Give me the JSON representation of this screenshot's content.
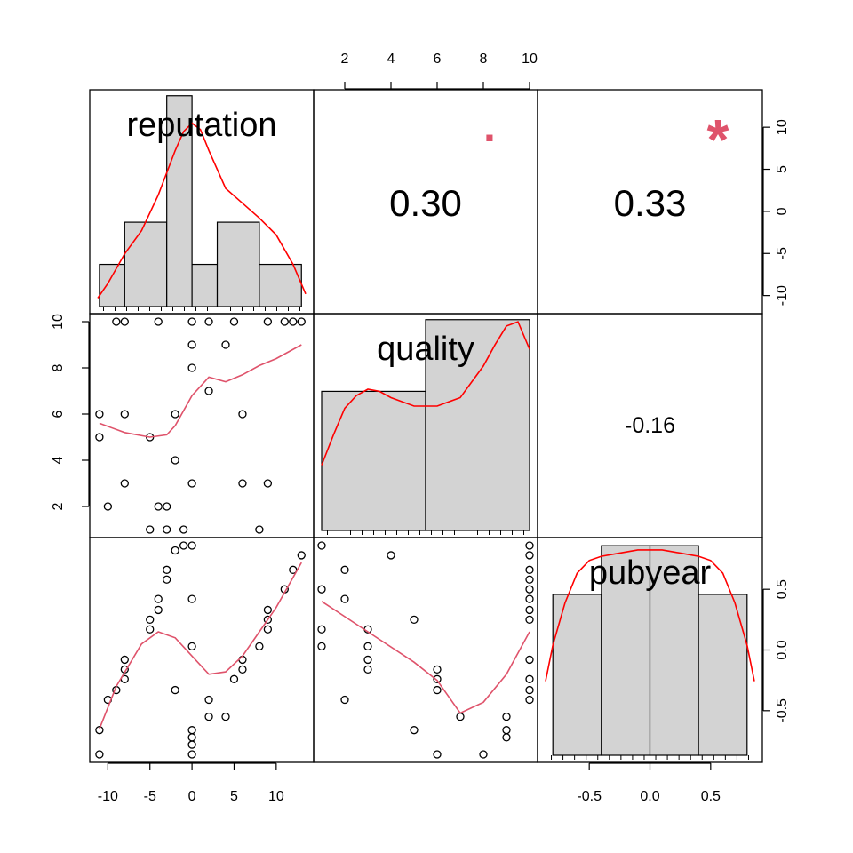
{
  "chart_data": {
    "type": "scatter",
    "variables": [
      "reputation",
      "quality",
      "pubyear"
    ],
    "ranges": {
      "reputation": [
        -11.2,
        13.5
      ],
      "quality": [
        1.0,
        10.0
      ],
      "pubyear": [
        -0.86,
        0.86
      ]
    },
    "axes": {
      "top": {
        "variable": "quality",
        "ticks": [
          2,
          4,
          6,
          8,
          10
        ],
        "labels": [
          "2",
          "4",
          "6",
          "8",
          "10"
        ]
      },
      "bottom_reputation": {
        "variable": "reputation",
        "ticks": [
          -10,
          -5,
          0,
          5,
          10
        ],
        "labels": [
          "-10",
          "-5",
          "0",
          "5",
          "10"
        ]
      },
      "bottom_pubyear": {
        "variable": "pubyear",
        "ticks": [
          -0.5,
          0,
          0.5
        ],
        "labels": [
          "-0.5",
          "0.0",
          "0.5"
        ]
      },
      "left_quality": {
        "variable": "quality",
        "ticks": [
          2,
          4,
          6,
          8,
          10
        ],
        "labels": [
          "2",
          "4",
          "6",
          "8",
          "10"
        ]
      },
      "right_reputation": {
        "variable": "reputation",
        "ticks": [
          -10,
          -5,
          0,
          5,
          10
        ],
        "labels": [
          "-10",
          "-5",
          "0",
          "5",
          "10"
        ]
      },
      "right_pubyear": {
        "variable": "pubyear",
        "ticks": [
          -0.5,
          0,
          0.5
        ],
        "labels": [
          "-0.5",
          "0.0",
          "0.5"
        ]
      }
    },
    "correlations": [
      {
        "row": "reputation",
        "col": "quality",
        "label": "0.30",
        "stars": ".",
        "size": "large"
      },
      {
        "row": "reputation",
        "col": "pubyear",
        "label": "0.33",
        "stars": "*",
        "size": "large"
      },
      {
        "row": "quality",
        "col": "pubyear",
        "label": "-0.16",
        "stars": "",
        "size": "small"
      }
    ],
    "histograms": {
      "reputation": {
        "breaks": [
          -11,
          -8,
          -3,
          0,
          3,
          8,
          13
        ],
        "heights": [
          2,
          4,
          10,
          2,
          4,
          2
        ],
        "ymax": 10.2,
        "density_x": [
          -11.2,
          -10,
          -8,
          -6,
          -4,
          -2,
          -1,
          0,
          1,
          2,
          4,
          6,
          8,
          10,
          12,
          13.5
        ],
        "density_y": [
          0.4,
          1.1,
          2.5,
          3.6,
          5.3,
          7.4,
          8.3,
          8.7,
          8.4,
          7.4,
          5.6,
          4.9,
          4.2,
          3.4,
          2.0,
          0.6
        ]
      },
      "quality": {
        "breaks": [
          1.0,
          5.5,
          10.0
        ],
        "heights": [
          6.6,
          10.0
        ],
        "ymax": 10.2,
        "density_x": [
          1.0,
          1.5,
          2.0,
          2.5,
          3.0,
          3.5,
          4.0,
          5.0,
          6.0,
          7.0,
          8.0,
          8.5,
          9.0,
          9.5,
          10.0
        ],
        "density_y": [
          3.1,
          4.5,
          5.8,
          6.4,
          6.7,
          6.6,
          6.3,
          5.9,
          5.9,
          6.3,
          7.8,
          8.8,
          9.7,
          9.9,
          8.6
        ]
      },
      "pubyear": {
        "breaks": [
          -0.8,
          -0.4,
          0.0,
          0.4,
          0.8
        ],
        "heights": [
          7.6,
          9.9,
          9.9,
          7.6
        ],
        "ymax": 10.2,
        "density_x": [
          -0.86,
          -0.8,
          -0.7,
          -0.6,
          -0.5,
          -0.4,
          -0.3,
          -0.2,
          -0.1,
          0.0,
          0.1,
          0.2,
          0.3,
          0.4,
          0.5,
          0.6,
          0.7,
          0.8,
          0.86
        ],
        "density_y": [
          3.5,
          5.2,
          7.2,
          8.6,
          9.2,
          9.4,
          9.5,
          9.6,
          9.7,
          9.7,
          9.7,
          9.6,
          9.5,
          9.4,
          9.2,
          8.6,
          7.2,
          5.2,
          3.5
        ]
      }
    },
    "scatter": {
      "quality_vs_reputation": {
        "points": [
          [
            -11,
            6
          ],
          [
            -11,
            5
          ],
          [
            -10,
            2
          ],
          [
            -9,
            10
          ],
          [
            -8,
            10
          ],
          [
            -8,
            6
          ],
          [
            -8,
            3
          ],
          [
            -5,
            5
          ],
          [
            -5,
            1
          ],
          [
            -4,
            10
          ],
          [
            -4,
            2
          ],
          [
            -3,
            2
          ],
          [
            -3,
            1
          ],
          [
            -2,
            6
          ],
          [
            -2,
            4
          ],
          [
            -1,
            1
          ],
          [
            0,
            10
          ],
          [
            0,
            9
          ],
          [
            0,
            8
          ],
          [
            0,
            3
          ],
          [
            2,
            10
          ],
          [
            2,
            7
          ],
          [
            4,
            9
          ],
          [
            5,
            10
          ],
          [
            6,
            6
          ],
          [
            6,
            3
          ],
          [
            8,
            1
          ],
          [
            9,
            10
          ],
          [
            9,
            3
          ],
          [
            11,
            10
          ],
          [
            12,
            10
          ],
          [
            13,
            10
          ]
        ],
        "smooth": [
          [
            -11,
            5.6
          ],
          [
            -8,
            5.2
          ],
          [
            -5,
            5.0
          ],
          [
            -3,
            5.1
          ],
          [
            -2,
            5.5
          ],
          [
            0,
            6.8
          ],
          [
            2,
            7.6
          ],
          [
            4,
            7.4
          ],
          [
            6,
            7.7
          ],
          [
            8,
            8.1
          ],
          [
            10,
            8.4
          ],
          [
            13,
            9.0
          ]
        ]
      },
      "pubyear_vs_reputation": {
        "points": [
          [
            -11,
            -0.66
          ],
          [
            -11,
            -0.86
          ],
          [
            -10,
            -0.41
          ],
          [
            -9,
            -0.33
          ],
          [
            -8,
            -0.08
          ],
          [
            -8,
            -0.16
          ],
          [
            -8,
            -0.24
          ],
          [
            -5,
            0.17
          ],
          [
            -5,
            0.25
          ],
          [
            -4,
            0.33
          ],
          [
            -4,
            0.42
          ],
          [
            -3,
            0.58
          ],
          [
            -3,
            0.66
          ],
          [
            -2,
            0.82
          ],
          [
            -2,
            -0.33
          ],
          [
            -1,
            0.86
          ],
          [
            0,
            0.86
          ],
          [
            0,
            0.42
          ],
          [
            0,
            0.03
          ],
          [
            0,
            -0.66
          ],
          [
            0,
            -0.72
          ],
          [
            0,
            -0.78
          ],
          [
            0,
            -0.86
          ],
          [
            2,
            -0.41
          ],
          [
            2,
            -0.55
          ],
          [
            4,
            -0.55
          ],
          [
            5,
            -0.24
          ],
          [
            6,
            -0.08
          ],
          [
            6,
            -0.16
          ],
          [
            8,
            0.03
          ],
          [
            9,
            0.17
          ],
          [
            9,
            0.25
          ],
          [
            9,
            0.33
          ],
          [
            11,
            0.5
          ],
          [
            12,
            0.66
          ],
          [
            13,
            0.78
          ]
        ],
        "smooth": [
          [
            -11,
            -0.65
          ],
          [
            -9,
            -0.3
          ],
          [
            -6,
            0.05
          ],
          [
            -4,
            0.15
          ],
          [
            -2,
            0.1
          ],
          [
            0,
            -0.05
          ],
          [
            2,
            -0.2
          ],
          [
            4,
            -0.18
          ],
          [
            6,
            -0.05
          ],
          [
            8,
            0.15
          ],
          [
            10,
            0.35
          ],
          [
            13,
            0.72
          ]
        ]
      },
      "pubyear_vs_quality": {
        "points": [
          [
            1,
            0.86
          ],
          [
            1,
            0.5
          ],
          [
            1,
            0.17
          ],
          [
            1,
            0.03
          ],
          [
            2,
            0.66
          ],
          [
            2,
            0.42
          ],
          [
            2,
            -0.41
          ],
          [
            3,
            0.17
          ],
          [
            3,
            0.03
          ],
          [
            3,
            -0.08
          ],
          [
            3,
            -0.16
          ],
          [
            4,
            0.78
          ],
          [
            5,
            0.25
          ],
          [
            5,
            -0.66
          ],
          [
            6,
            -0.16
          ],
          [
            6,
            -0.24
          ],
          [
            6,
            -0.33
          ],
          [
            6,
            -0.86
          ],
          [
            7,
            -0.55
          ],
          [
            8,
            -0.86
          ],
          [
            9,
            -0.55
          ],
          [
            9,
            -0.66
          ],
          [
            9,
            -0.72
          ],
          [
            10,
            0.86
          ],
          [
            10,
            0.78
          ],
          [
            10,
            0.66
          ],
          [
            10,
            0.58
          ],
          [
            10,
            0.5
          ],
          [
            10,
            0.42
          ],
          [
            10,
            0.33
          ],
          [
            10,
            0.25
          ],
          [
            10,
            -0.08
          ],
          [
            10,
            -0.24
          ],
          [
            10,
            -0.33
          ],
          [
            10,
            -0.41
          ]
        ],
        "smooth": [
          [
            1,
            0.4
          ],
          [
            3,
            0.15
          ],
          [
            5,
            -0.1
          ],
          [
            6,
            -0.25
          ],
          [
            7,
            -0.52
          ],
          [
            8,
            -0.43
          ],
          [
            9,
            -0.2
          ],
          [
            10,
            0.15
          ]
        ]
      }
    },
    "colors": {
      "points": "#000000",
      "smooth": "#DF536B",
      "density": "#FF0000",
      "stars": "#DF536B",
      "bars": "#D3D3D3"
    }
  }
}
